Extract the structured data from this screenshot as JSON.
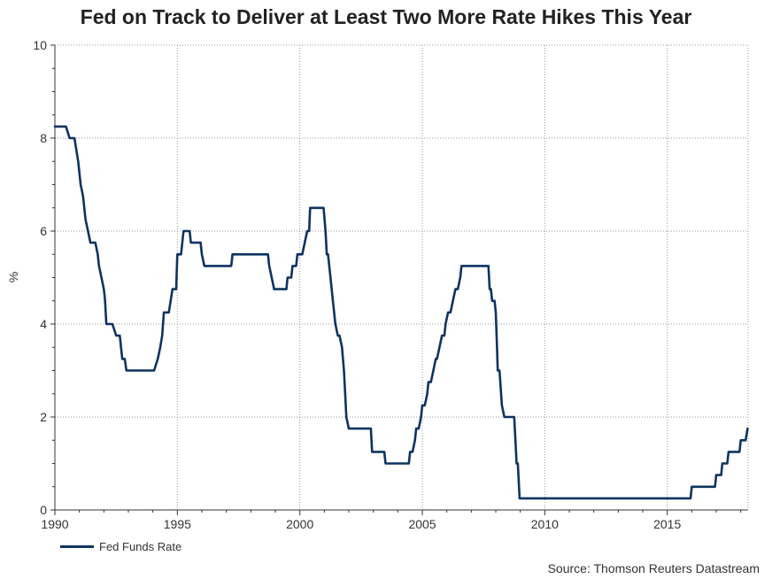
{
  "chart_data": {
    "type": "line",
    "title": "Fed on Track to Deliver at Least Two More Rate Hikes This Year",
    "ylabel": "%",
    "xlabel": "",
    "xlim": [
      1990,
      2018.3
    ],
    "ylim": [
      0,
      10
    ],
    "x_ticks": [
      1990,
      1995,
      2000,
      2005,
      2010,
      2015
    ],
    "y_ticks": [
      0,
      2,
      4,
      6,
      8,
      10
    ],
    "grid": true,
    "legend_position": "bottom-left",
    "source": "Source: Thomson Reuters Datastream",
    "colors": {
      "series": "#0d3361",
      "grid": "#9a9a9a",
      "axis": "#333333"
    },
    "series": [
      {
        "name": "Fed Funds Rate",
        "points": [
          [
            1990.0,
            8.25
          ],
          [
            1990.45,
            8.25
          ],
          [
            1990.6,
            8.0
          ],
          [
            1990.8,
            8.0
          ],
          [
            1990.95,
            7.5
          ],
          [
            1991.05,
            7.0
          ],
          [
            1991.15,
            6.75
          ],
          [
            1991.25,
            6.25
          ],
          [
            1991.35,
            6.0
          ],
          [
            1991.45,
            5.75
          ],
          [
            1991.65,
            5.75
          ],
          [
            1991.75,
            5.5
          ],
          [
            1991.8,
            5.25
          ],
          [
            1991.9,
            5.0
          ],
          [
            1992.0,
            4.75
          ],
          [
            1992.05,
            4.5
          ],
          [
            1992.1,
            4.0
          ],
          [
            1992.35,
            4.0
          ],
          [
            1992.5,
            3.75
          ],
          [
            1992.65,
            3.75
          ],
          [
            1992.75,
            3.25
          ],
          [
            1992.85,
            3.25
          ],
          [
            1992.92,
            3.0
          ],
          [
            1994.05,
            3.0
          ],
          [
            1994.2,
            3.25
          ],
          [
            1994.3,
            3.5
          ],
          [
            1994.38,
            3.75
          ],
          [
            1994.45,
            4.25
          ],
          [
            1994.65,
            4.25
          ],
          [
            1994.8,
            4.75
          ],
          [
            1994.95,
            4.75
          ],
          [
            1995.0,
            5.5
          ],
          [
            1995.15,
            5.5
          ],
          [
            1995.25,
            6.0
          ],
          [
            1995.5,
            6.0
          ],
          [
            1995.55,
            5.75
          ],
          [
            1995.95,
            5.75
          ],
          [
            1996.0,
            5.5
          ],
          [
            1996.1,
            5.25
          ],
          [
            1997.2,
            5.25
          ],
          [
            1997.25,
            5.5
          ],
          [
            1998.7,
            5.5
          ],
          [
            1998.75,
            5.25
          ],
          [
            1998.85,
            5.0
          ],
          [
            1998.95,
            4.75
          ],
          [
            1999.45,
            4.75
          ],
          [
            1999.5,
            5.0
          ],
          [
            1999.65,
            5.0
          ],
          [
            1999.7,
            5.25
          ],
          [
            1999.85,
            5.25
          ],
          [
            1999.9,
            5.5
          ],
          [
            2000.1,
            5.5
          ],
          [
            2000.2,
            5.75
          ],
          [
            2000.3,
            6.0
          ],
          [
            2000.38,
            6.0
          ],
          [
            2000.42,
            6.5
          ],
          [
            2000.97,
            6.5
          ],
          [
            2001.05,
            6.0
          ],
          [
            2001.1,
            5.5
          ],
          [
            2001.15,
            5.5
          ],
          [
            2001.25,
            5.0
          ],
          [
            2001.35,
            4.5
          ],
          [
            2001.45,
            4.0
          ],
          [
            2001.55,
            3.75
          ],
          [
            2001.62,
            3.75
          ],
          [
            2001.72,
            3.5
          ],
          [
            2001.8,
            3.0
          ],
          [
            2001.85,
            2.5
          ],
          [
            2001.9,
            2.0
          ],
          [
            2002.0,
            1.75
          ],
          [
            2002.9,
            1.75
          ],
          [
            2002.95,
            1.25
          ],
          [
            2003.45,
            1.25
          ],
          [
            2003.5,
            1.0
          ],
          [
            2004.45,
            1.0
          ],
          [
            2004.5,
            1.25
          ],
          [
            2004.6,
            1.25
          ],
          [
            2004.7,
            1.5
          ],
          [
            2004.75,
            1.75
          ],
          [
            2004.85,
            1.75
          ],
          [
            2004.95,
            2.0
          ],
          [
            2005.0,
            2.25
          ],
          [
            2005.1,
            2.25
          ],
          [
            2005.2,
            2.5
          ],
          [
            2005.25,
            2.75
          ],
          [
            2005.35,
            2.75
          ],
          [
            2005.45,
            3.0
          ],
          [
            2005.55,
            3.25
          ],
          [
            2005.6,
            3.25
          ],
          [
            2005.7,
            3.5
          ],
          [
            2005.8,
            3.75
          ],
          [
            2005.9,
            3.75
          ],
          [
            2005.95,
            4.0
          ],
          [
            2006.05,
            4.25
          ],
          [
            2006.15,
            4.25
          ],
          [
            2006.25,
            4.5
          ],
          [
            2006.35,
            4.75
          ],
          [
            2006.45,
            4.75
          ],
          [
            2006.55,
            5.0
          ],
          [
            2006.6,
            5.25
          ],
          [
            2007.7,
            5.25
          ],
          [
            2007.75,
            4.75
          ],
          [
            2007.8,
            4.75
          ],
          [
            2007.85,
            4.5
          ],
          [
            2007.95,
            4.5
          ],
          [
            2008.0,
            4.25
          ],
          [
            2008.05,
            3.5
          ],
          [
            2008.08,
            3.0
          ],
          [
            2008.15,
            3.0
          ],
          [
            2008.25,
            2.25
          ],
          [
            2008.35,
            2.0
          ],
          [
            2008.75,
            2.0
          ],
          [
            2008.8,
            1.5
          ],
          [
            2008.85,
            1.0
          ],
          [
            2008.9,
            1.0
          ],
          [
            2008.97,
            0.25
          ],
          [
            2015.95,
            0.25
          ],
          [
            2016.0,
            0.5
          ],
          [
            2016.95,
            0.5
          ],
          [
            2017.0,
            0.75
          ],
          [
            2017.2,
            0.75
          ],
          [
            2017.25,
            1.0
          ],
          [
            2017.45,
            1.0
          ],
          [
            2017.5,
            1.25
          ],
          [
            2017.95,
            1.25
          ],
          [
            2018.0,
            1.5
          ],
          [
            2018.2,
            1.5
          ],
          [
            2018.28,
            1.75
          ]
        ]
      }
    ]
  }
}
